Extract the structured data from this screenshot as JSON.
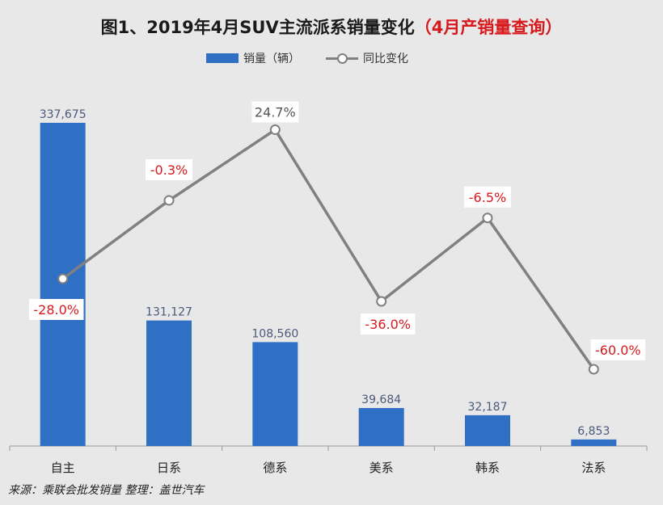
{
  "title": {
    "main": "图1、2019年4月SUV主流派系销量变化",
    "sub": "（4月产销量查询）"
  },
  "legend": {
    "bar_label": "销量（辆）",
    "line_label": "同比变化"
  },
  "source": "来源：乘联会批发销量  整理：盖世汽车",
  "colors": {
    "bar": "#2f6fc4",
    "line": "#808080",
    "pct_label": "#d7191c",
    "bar_label": "#4a5a7a"
  },
  "chart_data": {
    "type": "bar",
    "categories": [
      "自主",
      "日系",
      "德系",
      "美系",
      "韩系",
      "法系"
    ],
    "series": [
      {
        "name": "销量（辆）",
        "type": "bar",
        "values": [
          337675,
          131127,
          108560,
          39684,
          32187,
          6853
        ],
        "labels": [
          "337,675",
          "131,127",
          "108,560",
          "39,684",
          "32,187",
          "6,853"
        ]
      },
      {
        "name": "同比变化",
        "type": "line",
        "values": [
          -28.0,
          -0.3,
          24.7,
          -36.0,
          -6.5,
          -60.0
        ],
        "labels": [
          "-28.0%",
          "-0.3%",
          "24.7%",
          "-36.0%",
          "-6.5%",
          "-60.0%"
        ]
      }
    ],
    "grid": false,
    "legend_position": "top-center"
  }
}
